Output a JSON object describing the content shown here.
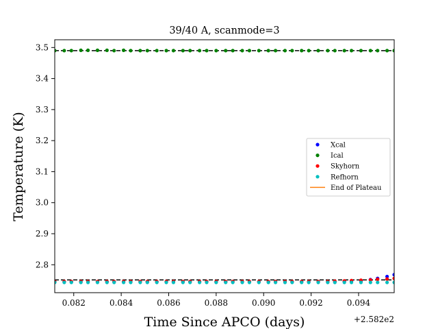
{
  "chart_data": {
    "type": "scatter",
    "title": "39/40 A, scanmode=3",
    "xlabel": "Time Since APCO (days)",
    "ylabel": "Temperature (K)",
    "x_offset_label": "+2.582e2",
    "xlim": [
      0.0812,
      0.0955
    ],
    "ylim": [
      2.71,
      3.525
    ],
    "x_ticks": [
      0.082,
      0.084,
      0.086,
      0.088,
      0.09,
      0.092,
      0.094
    ],
    "x_tick_labels": [
      "0.082",
      "0.084",
      "0.086",
      "0.088",
      "0.090",
      "0.092",
      "0.094"
    ],
    "y_ticks": [
      2.8,
      2.9,
      3.0,
      3.1,
      3.2,
      3.3,
      3.4,
      3.5
    ],
    "y_tick_labels": [
      "2.8",
      "2.9",
      "3.0",
      "3.1",
      "3.2",
      "3.3",
      "3.4",
      "3.5"
    ],
    "grid": false,
    "legend_position": "center-right",
    "x": [
      0.0812,
      0.0816,
      0.0819,
      0.0823,
      0.0826,
      0.083,
      0.0834,
      0.0837,
      0.0841,
      0.0844,
      0.0848,
      0.0851,
      0.0855,
      0.0859,
      0.0862,
      0.0866,
      0.0869,
      0.0873,
      0.0876,
      0.088,
      0.0884,
      0.0887,
      0.0891,
      0.0894,
      0.0898,
      0.0902,
      0.0905,
      0.0909,
      0.0912,
      0.0916,
      0.0919,
      0.0923,
      0.0927,
      0.093,
      0.0934,
      0.0937,
      0.0941,
      0.0945,
      0.0948,
      0.0952,
      0.0955
    ],
    "series": [
      {
        "name": "Xcal",
        "color": "#0000ff",
        "values": [
          2.745,
          2.745,
          2.745,
          2.745,
          2.745,
          2.745,
          2.745,
          2.745,
          2.745,
          2.745,
          2.745,
          2.745,
          2.745,
          2.745,
          2.745,
          2.745,
          2.745,
          2.745,
          2.745,
          2.745,
          2.745,
          2.745,
          2.745,
          2.745,
          2.745,
          2.745,
          2.745,
          2.745,
          2.745,
          2.745,
          2.745,
          2.745,
          2.745,
          2.745,
          2.746,
          2.747,
          2.748,
          2.752,
          2.756,
          2.762,
          2.768
        ]
      },
      {
        "name": "Ical",
        "color": "#008000",
        "values": [
          3.49,
          3.49,
          3.49,
          3.491,
          3.491,
          3.491,
          3.491,
          3.49,
          3.491,
          3.49,
          3.49,
          3.49,
          3.49,
          3.49,
          3.49,
          3.49,
          3.49,
          3.49,
          3.49,
          3.49,
          3.49,
          3.49,
          3.49,
          3.49,
          3.49,
          3.49,
          3.49,
          3.49,
          3.49,
          3.49,
          3.49,
          3.49,
          3.49,
          3.49,
          3.49,
          3.49,
          3.49,
          3.49,
          3.49,
          3.49,
          3.49
        ]
      },
      {
        "name": "Skyhorn",
        "color": "#ff0000",
        "values": [
          2.746,
          2.746,
          2.746,
          2.746,
          2.746,
          2.746,
          2.746,
          2.746,
          2.746,
          2.746,
          2.746,
          2.746,
          2.746,
          2.746,
          2.746,
          2.746,
          2.746,
          2.746,
          2.746,
          2.746,
          2.746,
          2.746,
          2.746,
          2.746,
          2.746,
          2.746,
          2.746,
          2.746,
          2.746,
          2.746,
          2.746,
          2.746,
          2.746,
          2.747,
          2.748,
          2.749,
          2.75,
          2.751,
          2.753,
          2.754,
          2.756
        ]
      },
      {
        "name": "Refhorn",
        "color": "#00bfbf",
        "values": [
          2.743,
          2.743,
          2.743,
          2.743,
          2.743,
          2.743,
          2.743,
          2.743,
          2.743,
          2.743,
          2.743,
          2.743,
          2.743,
          2.743,
          2.743,
          2.743,
          2.743,
          2.743,
          2.743,
          2.743,
          2.743,
          2.743,
          2.743,
          2.743,
          2.743,
          2.743,
          2.743,
          2.743,
          2.743,
          2.743,
          2.743,
          2.743,
          2.743,
          2.743,
          2.743,
          2.743,
          2.743,
          2.743,
          2.743,
          2.743,
          2.743
        ]
      }
    ],
    "reference_lines": [
      {
        "name": "Ical level",
        "color": "#000000",
        "style": "dashed",
        "y": 3.49
      },
      {
        "name": "Xcal level",
        "color": "#000000",
        "style": "dashed",
        "y": 2.751
      }
    ],
    "legend": [
      {
        "label": "Xcal",
        "marker": "dot",
        "color": "#0000ff"
      },
      {
        "label": "Ical",
        "marker": "dot",
        "color": "#008000"
      },
      {
        "label": "Skyhorn",
        "marker": "dot",
        "color": "#ff0000"
      },
      {
        "label": "Refhorn",
        "marker": "dot",
        "color": "#00bfbf"
      },
      {
        "label": "End of Plateau",
        "marker": "line",
        "color": "#ff7f0e"
      }
    ]
  }
}
